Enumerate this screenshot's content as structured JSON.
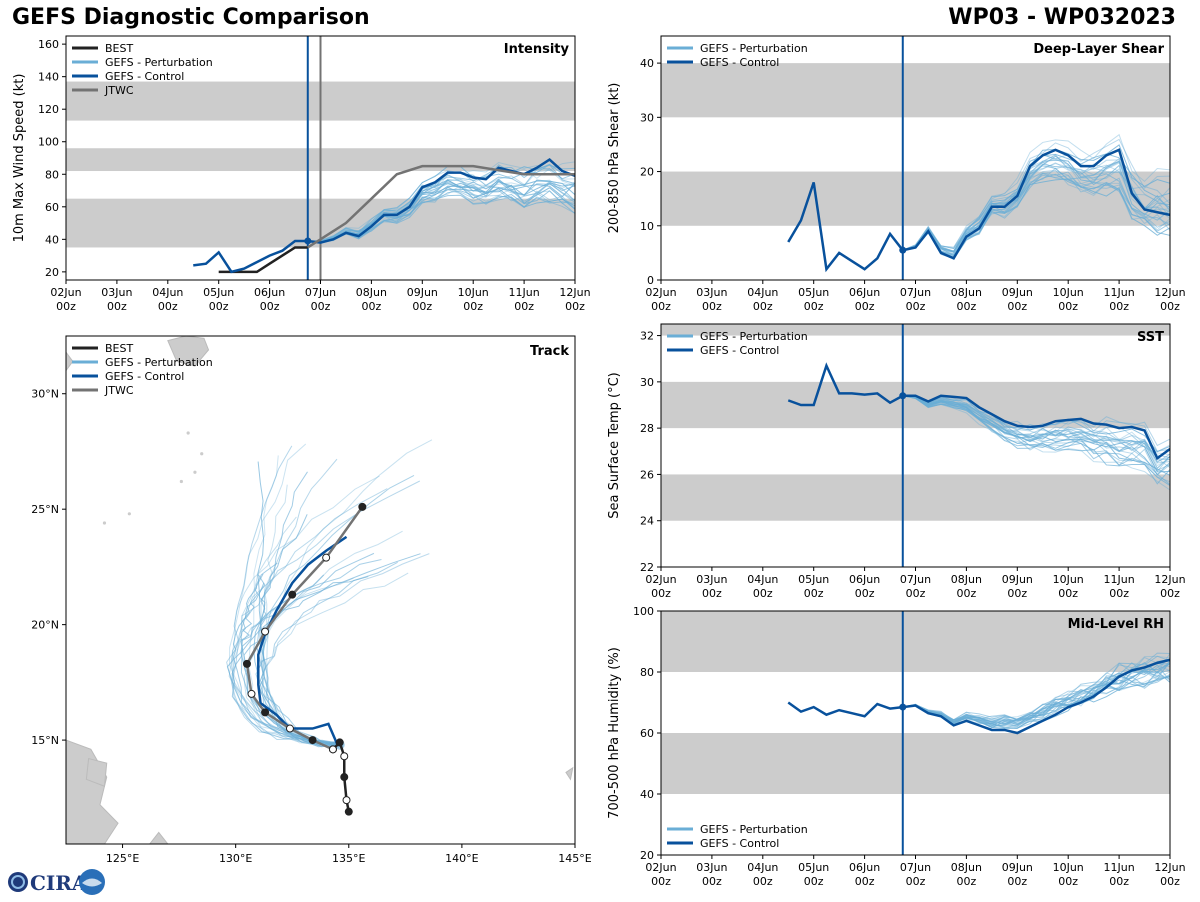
{
  "header": {
    "title": "GEFS Diagnostic Comparison",
    "storm": "WP03 - WP032023"
  },
  "colors": {
    "best": "#222222",
    "pert": "#6aaed6",
    "control": "#08519c",
    "jtwc": "#737373",
    "band": "#cccccc"
  },
  "logo": {
    "text": "CIRA"
  },
  "time_axis": {
    "ticks": [
      "02Jun",
      "03Jun",
      "04Jun",
      "05Jun",
      "06Jun",
      "07Jun",
      "08Jun",
      "09Jun",
      "10Jun",
      "11Jun",
      "12Jun"
    ],
    "sub": "00z",
    "init_day": 4.75
  },
  "chart_data": [
    {
      "id": "intensity",
      "type": "line",
      "title": "Intensity",
      "ylabel": "10m Max Wind Speed (kt)",
      "xlim": [
        0,
        10
      ],
      "ylim": [
        15,
        165
      ],
      "yticks": [
        20,
        40,
        60,
        80,
        100,
        120,
        140,
        160
      ],
      "bands": [
        [
          35,
          65
        ],
        [
          82,
          96
        ],
        [
          113,
          137
        ]
      ],
      "vlines": [
        {
          "x": 4.75,
          "color": "control"
        },
        {
          "x": 5.0,
          "color": "jtwc"
        }
      ],
      "legend": [
        "BEST",
        "GEFS - Perturbation",
        "GEFS - Control",
        "JTWC"
      ],
      "series": [
        {
          "name": "BEST",
          "kind": "best",
          "x": [
            3.0,
            3.25,
            3.5,
            3.75,
            4.0,
            4.25,
            4.5,
            4.75
          ],
          "y": [
            20,
            20,
            20,
            20,
            25,
            30,
            35,
            35
          ]
        },
        {
          "name": "GEFS - Control",
          "kind": "control",
          "x": [
            2.5,
            2.75,
            3.0,
            3.25,
            3.5,
            3.75,
            4.0,
            4.25,
            4.5,
            4.75,
            5.0,
            5.25,
            5.5,
            5.75,
            6.0,
            6.25,
            6.5,
            6.75,
            7.0,
            7.25,
            7.5,
            7.75,
            8.0,
            8.25,
            8.5,
            8.75,
            9.0,
            9.25,
            9.5,
            9.75,
            10.0
          ],
          "y": [
            24,
            25,
            32,
            20,
            22,
            26,
            30,
            33,
            39,
            39,
            38,
            40,
            44,
            42,
            48,
            55,
            55,
            60,
            72,
            75,
            81,
            81,
            78,
            77,
            84,
            82,
            80,
            84,
            89,
            82,
            79
          ]
        },
        {
          "name": "JTWC",
          "kind": "jtwc",
          "x": [
            4.75,
            5.0,
            5.5,
            6.0,
            6.5,
            7.0,
            8.0,
            9.0,
            10.0
          ],
          "y": [
            35,
            40,
            50,
            65,
            80,
            85,
            85,
            80,
            80
          ]
        }
      ],
      "pert_start": [
        4.75,
        38
      ],
      "pert_end_range": [
        28,
        88
      ]
    },
    {
      "id": "shear",
      "type": "line",
      "title": "Deep-Layer Shear",
      "ylabel": "200-850 hPa Shear (kt)",
      "xlim": [
        0,
        10
      ],
      "ylim": [
        0,
        45
      ],
      "yticks": [
        0,
        10,
        20,
        30,
        40
      ],
      "bands": [
        [
          10,
          20
        ],
        [
          30,
          40
        ]
      ],
      "vlines": [
        {
          "x": 4.75,
          "color": "control"
        }
      ],
      "legend": [
        "GEFS - Perturbation",
        "GEFS - Control"
      ],
      "series": [
        {
          "name": "GEFS - Control",
          "kind": "control",
          "x": [
            2.5,
            2.75,
            3.0,
            3.25,
            3.5,
            3.75,
            4.0,
            4.25,
            4.5,
            4.75,
            5.0,
            5.25,
            5.5,
            5.75,
            6.0,
            6.25,
            6.5,
            6.75,
            7.0,
            7.25,
            7.5,
            7.75,
            8.0,
            8.25,
            8.5,
            8.75,
            9.0,
            9.25,
            9.5,
            9.75,
            10.0
          ],
          "y": [
            7,
            11,
            18,
            2,
            5,
            3.5,
            2,
            4,
            8.5,
            5.5,
            6,
            9,
            5,
            4,
            8,
            9.5,
            13.5,
            13.5,
            15.5,
            21,
            23,
            24,
            23,
            21,
            21,
            23,
            24,
            16,
            13,
            12.5,
            12
          ]
        }
      ],
      "pert_start": [
        4.75,
        5.5
      ],
      "pert_end_range": [
        3,
        30
      ]
    },
    {
      "id": "sst",
      "type": "line",
      "title": "SST",
      "ylabel": "Sea Surface Temp (°C)",
      "xlim": [
        0,
        10
      ],
      "ylim": [
        22,
        32.5
      ],
      "yticks": [
        22,
        24,
        26,
        28,
        30,
        32
      ],
      "bands": [
        [
          24,
          26
        ],
        [
          28,
          30
        ],
        [
          32,
          32.5
        ]
      ],
      "vlines": [
        {
          "x": 4.75,
          "color": "control"
        }
      ],
      "legend": [
        "GEFS - Perturbation",
        "GEFS - Control"
      ],
      "series": [
        {
          "name": "GEFS - Control",
          "kind": "control",
          "x": [
            2.5,
            2.75,
            3.0,
            3.25,
            3.5,
            3.75,
            4.0,
            4.25,
            4.5,
            4.75,
            5.0,
            5.25,
            5.5,
            5.75,
            6.0,
            6.25,
            6.5,
            6.75,
            7.0,
            7.25,
            7.5,
            7.75,
            8.0,
            8.25,
            8.5,
            8.75,
            9.0,
            9.25,
            9.5,
            9.75,
            10.0
          ],
          "y": [
            29.2,
            29.0,
            29.0,
            30.7,
            29.5,
            29.5,
            29.45,
            29.5,
            29.1,
            29.4,
            29.4,
            29.15,
            29.4,
            29.35,
            29.3,
            28.9,
            28.6,
            28.3,
            28.1,
            28.05,
            28.1,
            28.3,
            28.35,
            28.4,
            28.2,
            28.15,
            28.0,
            28.05,
            27.9,
            26.7,
            27.1
          ]
        }
      ],
      "pert_start": [
        4.75,
        29.4
      ],
      "pert_end_range": [
        23.5,
        28.5
      ]
    },
    {
      "id": "rh",
      "type": "line",
      "title": "Mid-Level RH",
      "ylabel": "700-500 hPa Humidity (%)",
      "xlim": [
        0,
        10
      ],
      "ylim": [
        20,
        100
      ],
      "yticks": [
        20,
        40,
        60,
        80,
        100
      ],
      "bands": [
        [
          40,
          60
        ],
        [
          80,
          100
        ]
      ],
      "vlines": [
        {
          "x": 4.75,
          "color": "control"
        }
      ],
      "legend": [
        "GEFS - Perturbation",
        "GEFS - Control"
      ],
      "series": [
        {
          "name": "GEFS - Control",
          "kind": "control",
          "x": [
            2.5,
            2.75,
            3.0,
            3.25,
            3.5,
            3.75,
            4.0,
            4.25,
            4.5,
            4.75,
            5.0,
            5.25,
            5.5,
            5.75,
            6.0,
            6.25,
            6.5,
            6.75,
            7.0,
            7.25,
            7.5,
            7.75,
            8.0,
            8.25,
            8.5,
            8.75,
            9.0,
            9.25,
            9.5,
            9.75,
            10.0
          ],
          "y": [
            70,
            67,
            68.5,
            66,
            67.5,
            66.5,
            65.5,
            69.5,
            68,
            68.5,
            69,
            66.5,
            65.5,
            62.5,
            64,
            62.5,
            61,
            61,
            60,
            62,
            64,
            66,
            68.5,
            70,
            72,
            75,
            78.5,
            80.5,
            81.5,
            83,
            84
          ]
        }
      ],
      "pert_start": [
        4.75,
        68.5
      ],
      "pert_end_range": [
        68,
        86
      ]
    },
    {
      "id": "track",
      "type": "scatter",
      "title": "Track",
      "xlim": [
        122.5,
        145
      ],
      "ylim": [
        10.5,
        32.5
      ],
      "xticks": [
        125,
        130,
        135,
        140,
        145
      ],
      "xtick_labels": [
        "125°E",
        "130°E",
        "135°E",
        "140°E",
        "145°E"
      ],
      "yticks": [
        15,
        20,
        25,
        30
      ],
      "ytick_labels": [
        "15°N",
        "20°N",
        "25°N",
        "30°N"
      ],
      "legend": [
        "BEST",
        "GEFS - Perturbation",
        "GEFS - Control",
        "JTWC"
      ],
      "best": {
        "lon": [
          135.0,
          134.9,
          134.8,
          134.8,
          134.6,
          134.3
        ],
        "lat": [
          11.9,
          12.4,
          13.4,
          14.3,
          14.9,
          14.6
        ]
      },
      "control": {
        "lon": [
          134.5,
          134.1,
          133.4,
          132.4,
          131.8,
          131.1,
          131.0,
          131.0,
          131.3,
          131.8,
          132.5,
          133.2,
          134.0,
          134.9
        ],
        "lat": [
          14.8,
          15.7,
          15.5,
          15.5,
          16.1,
          16.6,
          17.4,
          18.7,
          19.6,
          20.6,
          21.8,
          22.6,
          23.2,
          23.8
        ]
      },
      "jtwc": {
        "lon": [
          134.3,
          133.4,
          132.4,
          131.3,
          130.7,
          130.5,
          131.3,
          132.5,
          134.0,
          135.6
        ],
        "lat": [
          14.6,
          15.0,
          15.5,
          16.2,
          17.0,
          18.3,
          19.7,
          21.3,
          22.9,
          25.1
        ]
      },
      "pert_end_lon_range": [
        131,
        138.8
      ],
      "pert_end_lat_range": [
        21.6,
        28.5
      ]
    }
  ]
}
